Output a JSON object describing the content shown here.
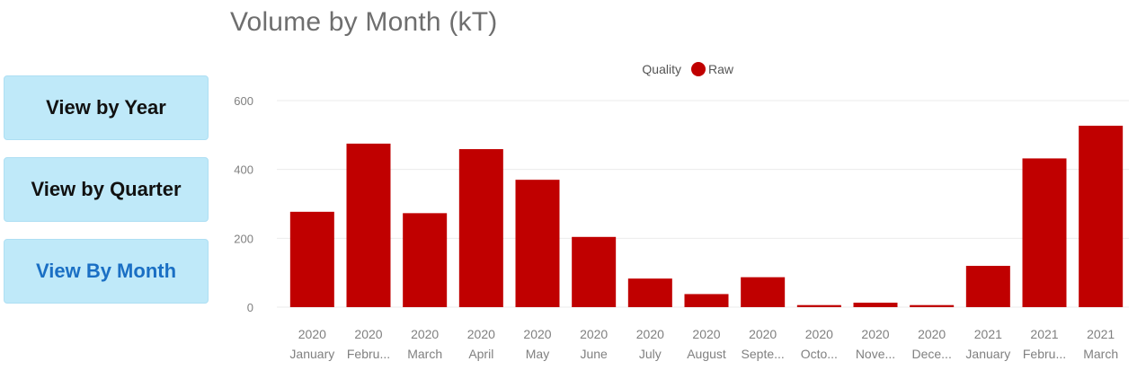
{
  "buttons": [
    {
      "label": "View by Year",
      "active": false
    },
    {
      "label": "View by Quarter",
      "active": false
    },
    {
      "label": "View By Month",
      "active": true
    }
  ],
  "colors": {
    "bar": "#c00000",
    "button_bg": "#bfe9f9",
    "active_text": "#1a6fc4",
    "gridline": "#ebebeb",
    "axis_text": "#808080"
  },
  "chart_data": {
    "type": "bar",
    "title": "Volume by Month (kT)",
    "legend_title": "Quality",
    "legend_position": "top-center",
    "categories": [
      {
        "year": "2020",
        "month": "January"
      },
      {
        "year": "2020",
        "month": "Febru..."
      },
      {
        "year": "2020",
        "month": "March"
      },
      {
        "year": "2020",
        "month": "April"
      },
      {
        "year": "2020",
        "month": "May"
      },
      {
        "year": "2020",
        "month": "June"
      },
      {
        "year": "2020",
        "month": "July"
      },
      {
        "year": "2020",
        "month": "August"
      },
      {
        "year": "2020",
        "month": "Septe..."
      },
      {
        "year": "2020",
        "month": "Octo..."
      },
      {
        "year": "2020",
        "month": "Nove..."
      },
      {
        "year": "2020",
        "month": "Dece..."
      },
      {
        "year": "2021",
        "month": "January"
      },
      {
        "year": "2021",
        "month": "Febru..."
      },
      {
        "year": "2021",
        "month": "March"
      }
    ],
    "series": [
      {
        "name": "Raw",
        "color": "#c00000",
        "values": [
          277,
          475,
          273,
          459,
          370,
          204,
          83,
          38,
          87,
          6,
          13,
          6,
          120,
          432,
          527
        ]
      }
    ],
    "ylim": [
      0,
      600
    ],
    "yticks": [
      0,
      200,
      400,
      600
    ],
    "grid": true
  }
}
